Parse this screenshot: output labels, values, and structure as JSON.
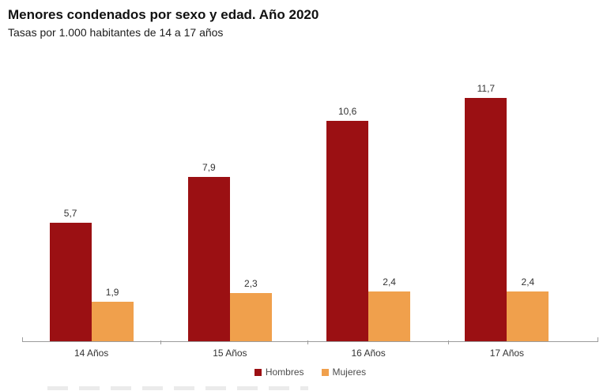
{
  "header": {
    "title": "Menores condenados por sexo y edad. Año 2020",
    "subtitle": "Tasas por 1.000 habitantes de 14 a 17 años"
  },
  "chart_data": {
    "type": "bar",
    "title": "Menores condenados por sexo y edad. Año 2020",
    "subtitle": "Tasas por 1.000 habitantes de 14 a 17 años",
    "categories": [
      "14 Años",
      "15 Años",
      "16 Años",
      "17 Años"
    ],
    "series": [
      {
        "name": "Hombres",
        "color": "#9B1013",
        "values": [
          5.7,
          7.9,
          10.6,
          11.7
        ],
        "labels": [
          "5,7",
          "7,9",
          "10,6",
          "11,7"
        ]
      },
      {
        "name": "Mujeres",
        "color": "#F0A04C",
        "values": [
          1.9,
          2.3,
          2.4,
          2.4
        ],
        "labels": [
          "1,9",
          "2,3",
          "2,4",
          "2,4"
        ]
      }
    ],
    "xlabel": "",
    "ylabel": "",
    "ylim": [
      0,
      12.9
    ],
    "grid": false,
    "legend_position": "bottom",
    "value_label_decimal_separator": ",",
    "axis_color": "#9c9c9c"
  }
}
